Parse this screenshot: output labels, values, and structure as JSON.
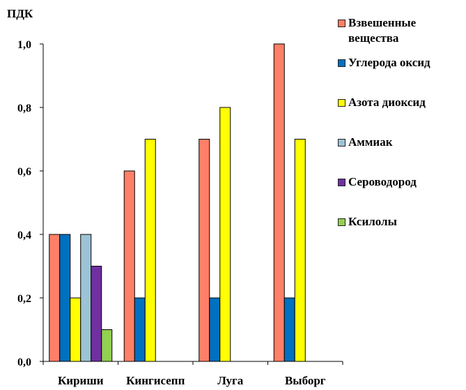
{
  "chart_data": {
    "type": "bar",
    "title": "",
    "xlabel": "",
    "ylabel": "ПДК",
    "ylim": [
      0,
      1.0
    ],
    "ytick_values": [
      0,
      0.2,
      0.4,
      0.6,
      0.8,
      1.0
    ],
    "yticks": [
      "0,0",
      "0,2",
      "0,4",
      "0,6",
      "0,8",
      "1,0"
    ],
    "grid": false,
    "legend": "right",
    "categories": [
      "Кириши",
      "Кингисепп",
      "Луга",
      "Выборг"
    ],
    "series": [
      {
        "name": "Взвешенные вещества",
        "color": "#FF7F67",
        "values": [
          0.4,
          0.6,
          0.7,
          1.0
        ]
      },
      {
        "name": "Углерода оксид",
        "color": "#0070C0",
        "values": [
          0.4,
          0.2,
          0.2,
          0.2
        ]
      },
      {
        "name": "Азота диоксид",
        "color": "#FFFF00",
        "values": [
          0.2,
          0.7,
          0.8,
          0.7
        ]
      },
      {
        "name": "Аммиак",
        "color": "#9DC3D6",
        "values": [
          0.4,
          null,
          null,
          null
        ]
      },
      {
        "name": "Сероводород",
        "color": "#7030A0",
        "values": [
          0.3,
          null,
          null,
          null
        ]
      },
      {
        "name": "Ксилолы",
        "color": "#92D050",
        "values": [
          0.1,
          null,
          null,
          null
        ]
      }
    ]
  }
}
